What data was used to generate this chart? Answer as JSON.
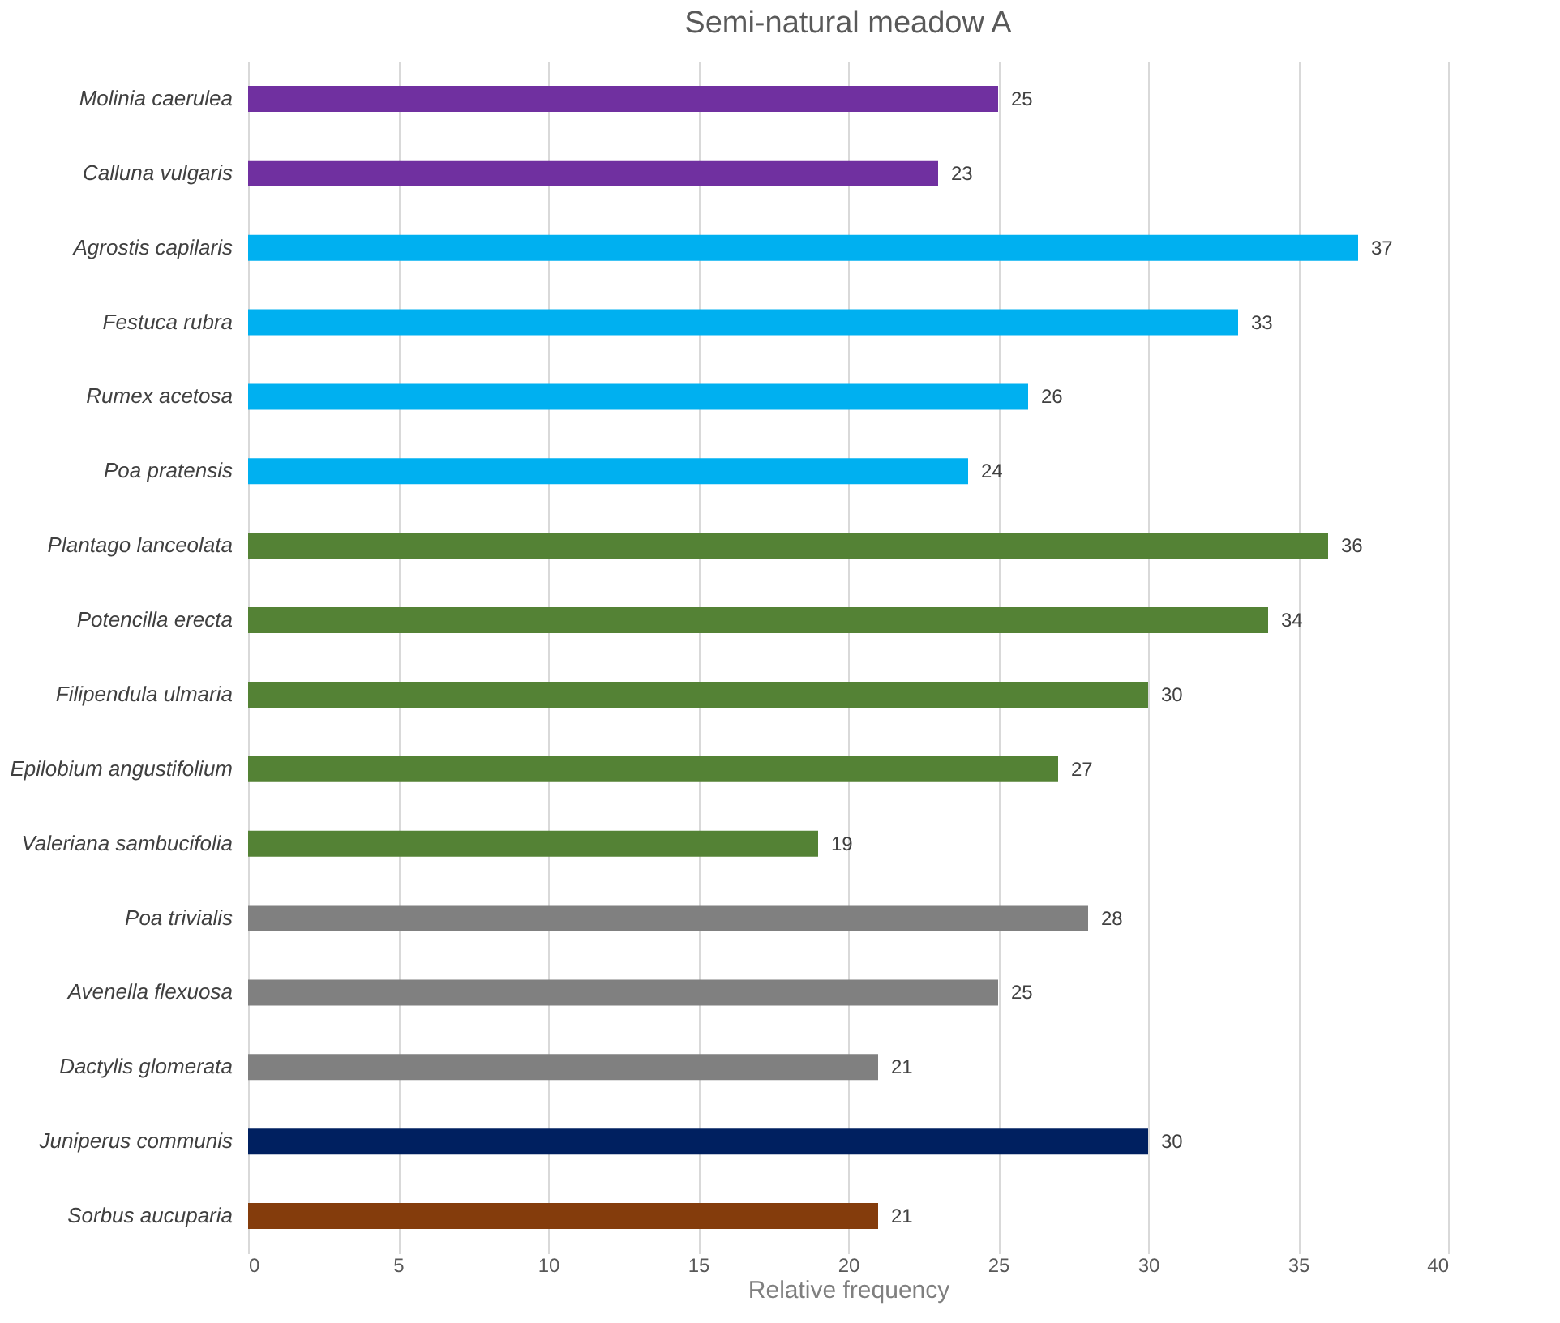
{
  "chart_data": {
    "type": "bar",
    "orientation": "horizontal",
    "title": "Semi-natural meadow A",
    "xlabel": "Relative frequency",
    "categories": [
      "Molinia caerulea",
      "Calluna vulgaris",
      "Agrostis capilaris",
      "Festuca rubra",
      "Rumex acetosa",
      "Poa pratensis",
      "Plantago lanceolata",
      "Potencilla erecta",
      "Filipendula ulmaria",
      "Epilobium angustifolium",
      "Valeriana sambucifolia",
      "Poa trivialis",
      "Avenella flexuosa",
      "Dactylis glomerata",
      "Juniperus communis",
      "Sorbus aucuparia"
    ],
    "values": [
      25,
      23,
      37,
      33,
      26,
      24,
      36,
      34,
      30,
      27,
      19,
      28,
      25,
      21,
      30,
      21
    ],
    "colors": [
      "#7030a0",
      "#7030a0",
      "#00b0f0",
      "#00b0f0",
      "#00b0f0",
      "#00b0f0",
      "#548235",
      "#548235",
      "#548235",
      "#548235",
      "#548235",
      "#808080",
      "#808080",
      "#808080",
      "#002060",
      "#843c0c"
    ],
    "xlim": [
      0,
      40
    ],
    "xticks": [
      0,
      5,
      10,
      15,
      20,
      25,
      30,
      35,
      40
    ],
    "grid": "x",
    "data_labels": true
  }
}
